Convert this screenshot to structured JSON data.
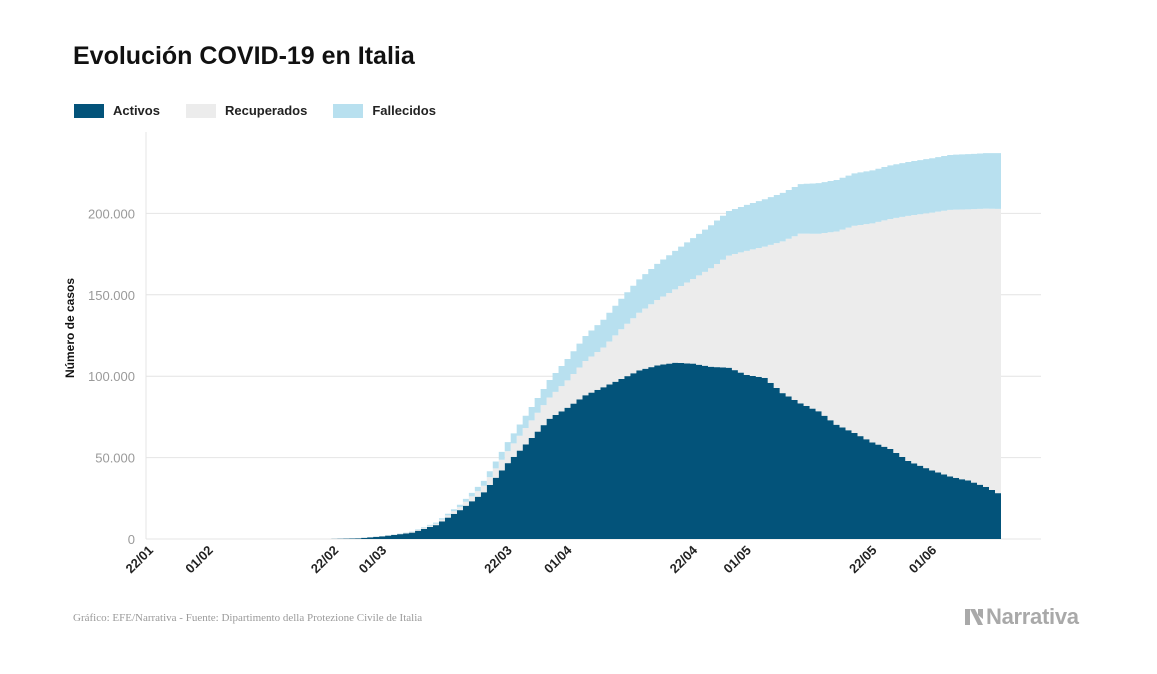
{
  "title": "Evolución COVID-19 en Italia",
  "legend": [
    {
      "label": "Activos",
      "color": "#03537a"
    },
    {
      "label": "Recuperados",
      "color": "#ececec"
    },
    {
      "label": "Fallecidos",
      "color": "#b8e0ef"
    }
  ],
  "source": "Gráfico: EFE/Narrativa - Fuente: Dipartimento della Protezione Civile de Italia",
  "brand": "Narrativa",
  "chart_data": {
    "type": "area",
    "stacked": true,
    "title": "Evolución COVID-19 en Italia",
    "xlabel": "",
    "ylabel": "Número de casos",
    "ylim": [
      0,
      250000
    ],
    "yticks": [
      0,
      50000,
      100000,
      150000,
      200000
    ],
    "ytick_labels": [
      "0",
      "50.000",
      "100.000",
      "150.000",
      "200.000"
    ],
    "x_start": "2020-01-22",
    "x_end": "2020-06-13",
    "xticks": [
      "2020-01-22",
      "2020-02-01",
      "2020-02-22",
      "2020-03-01",
      "2020-03-22",
      "2020-04-01",
      "2020-04-22",
      "2020-05-01",
      "2020-05-22",
      "2020-06-01"
    ],
    "xtick_labels": [
      "22/01",
      "01/02",
      "22/02",
      "01/03",
      "22/03",
      "01/04",
      "22/04",
      "01/05",
      "22/05",
      "01/06"
    ],
    "grid": true,
    "legend_position": "top-left",
    "series_keypoints": [
      {
        "name": "Activos",
        "color": "#03537a",
        "points": [
          [
            "2020-01-22",
            0
          ],
          [
            "2020-02-21",
            0
          ],
          [
            "2020-02-26",
            400
          ],
          [
            "2020-03-01",
            1600
          ],
          [
            "2020-03-06",
            3900
          ],
          [
            "2020-03-10",
            8500
          ],
          [
            "2020-03-14",
            17700
          ],
          [
            "2020-03-18",
            28700
          ],
          [
            "2020-03-22",
            46600
          ],
          [
            "2020-03-26",
            62000
          ],
          [
            "2020-03-29",
            73900
          ],
          [
            "2020-04-01",
            80600
          ],
          [
            "2020-04-04",
            88300
          ],
          [
            "2020-04-07",
            93200
          ],
          [
            "2020-04-10",
            98300
          ],
          [
            "2020-04-13",
            103600
          ],
          [
            "2020-04-16",
            106600
          ],
          [
            "2020-04-19",
            108300
          ],
          [
            "2020-04-22",
            107700
          ],
          [
            "2020-04-25",
            105800
          ],
          [
            "2020-04-28",
            105200
          ],
          [
            "2020-05-01",
            100700
          ],
          [
            "2020-05-04",
            99000
          ],
          [
            "2020-05-07",
            89600
          ],
          [
            "2020-05-10",
            83300
          ],
          [
            "2020-05-13",
            78500
          ],
          [
            "2020-05-16",
            70200
          ],
          [
            "2020-05-19",
            65100
          ],
          [
            "2020-05-22",
            59300
          ],
          [
            "2020-05-25",
            55300
          ],
          [
            "2020-05-28",
            47900
          ],
          [
            "2020-06-01",
            42100
          ],
          [
            "2020-06-04",
            38400
          ],
          [
            "2020-06-07",
            35900
          ],
          [
            "2020-06-10",
            32000
          ],
          [
            "2020-06-13",
            26300
          ]
        ]
      },
      {
        "name": "Recuperados",
        "color": "#ececec",
        "points": [
          [
            "2020-01-22",
            0
          ],
          [
            "2020-02-24",
            0
          ],
          [
            "2020-03-01",
            80
          ],
          [
            "2020-03-06",
            500
          ],
          [
            "2020-03-10",
            900
          ],
          [
            "2020-03-14",
            1900
          ],
          [
            "2020-03-18",
            4000
          ],
          [
            "2020-03-22",
            7400
          ],
          [
            "2020-03-26",
            10900
          ],
          [
            "2020-03-29",
            13000
          ],
          [
            "2020-04-01",
            16800
          ],
          [
            "2020-04-04",
            21000
          ],
          [
            "2020-04-07",
            24400
          ],
          [
            "2020-04-10",
            30500
          ],
          [
            "2020-04-13",
            35400
          ],
          [
            "2020-04-16",
            40200
          ],
          [
            "2020-04-19",
            45000
          ],
          [
            "2020-04-22",
            52000
          ],
          [
            "2020-04-25",
            60500
          ],
          [
            "2020-04-28",
            68900
          ],
          [
            "2020-05-01",
            76300
          ],
          [
            "2020-05-04",
            80600
          ],
          [
            "2020-05-07",
            93200
          ],
          [
            "2020-05-10",
            104300
          ],
          [
            "2020-05-13",
            109000
          ],
          [
            "2020-05-16",
            118700
          ],
          [
            "2020-05-19",
            127300
          ],
          [
            "2020-05-22",
            134600
          ],
          [
            "2020-05-25",
            141300
          ],
          [
            "2020-05-28",
            150600
          ],
          [
            "2020-06-01",
            158400
          ],
          [
            "2020-06-04",
            163800
          ],
          [
            "2020-06-07",
            166600
          ],
          [
            "2020-06-10",
            170900
          ],
          [
            "2020-06-13",
            176400
          ]
        ]
      },
      {
        "name": "Fallecidos",
        "color": "#b8e0ef",
        "points": [
          [
            "2020-01-22",
            0
          ],
          [
            "2020-02-21",
            0
          ],
          [
            "2020-02-26",
            12
          ],
          [
            "2020-03-01",
            34
          ],
          [
            "2020-03-06",
            200
          ],
          [
            "2020-03-10",
            630
          ],
          [
            "2020-03-14",
            1400
          ],
          [
            "2020-03-18",
            3000
          ],
          [
            "2020-03-22",
            5500
          ],
          [
            "2020-03-26",
            8200
          ],
          [
            "2020-03-29",
            10800
          ],
          [
            "2020-04-01",
            13200
          ],
          [
            "2020-04-04",
            15400
          ],
          [
            "2020-04-07",
            17100
          ],
          [
            "2020-04-10",
            18800
          ],
          [
            "2020-04-13",
            20500
          ],
          [
            "2020-04-16",
            22200
          ],
          [
            "2020-04-19",
            23700
          ],
          [
            "2020-04-22",
            25100
          ],
          [
            "2020-04-25",
            26400
          ],
          [
            "2020-04-28",
            27400
          ],
          [
            "2020-05-01",
            28200
          ],
          [
            "2020-05-04",
            29100
          ],
          [
            "2020-05-07",
            29800
          ],
          [
            "2020-05-10",
            30400
          ],
          [
            "2020-05-13",
            31100
          ],
          [
            "2020-05-16",
            31600
          ],
          [
            "2020-05-19",
            32200
          ],
          [
            "2020-05-22",
            32500
          ],
          [
            "2020-05-25",
            32900
          ],
          [
            "2020-05-28",
            33100
          ],
          [
            "2020-06-01",
            33400
          ],
          [
            "2020-06-04",
            33700
          ],
          [
            "2020-06-07",
            33900
          ],
          [
            "2020-06-10",
            34100
          ],
          [
            "2020-06-13",
            34300
          ]
        ]
      }
    ]
  }
}
